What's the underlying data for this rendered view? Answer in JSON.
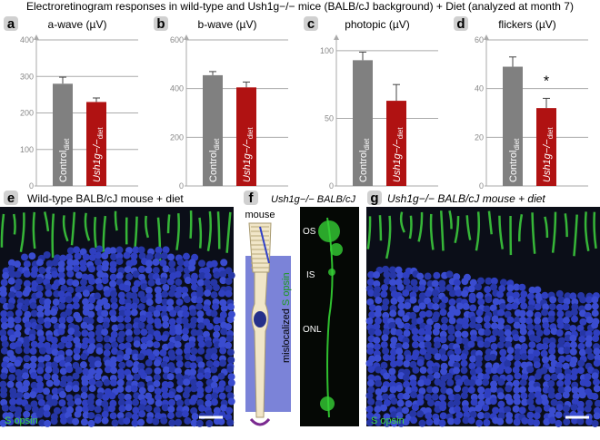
{
  "figure_title": "Electroretinogram responses in wild-type and Ush1g−/− mice (BALB/cJ background) + Diet (analyzed at month 7)",
  "chart_data": [
    {
      "type": "bar",
      "panel": "a",
      "title": "a-wave (µV)",
      "categories": [
        "Control",
        "Ush1g−/−"
      ],
      "category_subscript": "diet",
      "values": [
        280,
        230
      ],
      "errors": [
        18,
        11
      ],
      "colors": [
        "#808080",
        "#b01212"
      ],
      "ylim": [
        0,
        400
      ],
      "yticks": [
        0,
        100,
        200,
        300,
        400
      ],
      "grid": true
    },
    {
      "type": "bar",
      "panel": "b",
      "title": "b-wave (µV)",
      "categories": [
        "Control",
        "Ush1g−/−"
      ],
      "category_subscript": "diet",
      "values": [
        455,
        405
      ],
      "errors": [
        15,
        22
      ],
      "colors": [
        "#808080",
        "#b01212"
      ],
      "ylim": [
        0,
        600
      ],
      "yticks": [
        0,
        200,
        400,
        600
      ],
      "grid": true
    },
    {
      "type": "bar",
      "panel": "c",
      "title": "photopic (µV)",
      "categories": [
        "Control",
        "Ush1g−/−"
      ],
      "category_subscript": "diet",
      "values": [
        93,
        63
      ],
      "errors": [
        6,
        12
      ],
      "colors": [
        "#808080",
        "#b01212"
      ],
      "ylim": [
        0,
        108
      ],
      "yticks": [
        0,
        50,
        100
      ],
      "grid": true
    },
    {
      "type": "bar",
      "panel": "d",
      "title": "flickers (µV)",
      "categories": [
        "Control",
        "Ush1g−/−"
      ],
      "category_subscript": "diet",
      "values": [
        49,
        32
      ],
      "errors": [
        4,
        4
      ],
      "colors": [
        "#808080",
        "#b01212"
      ],
      "ylim": [
        0,
        60
      ],
      "yticks": [
        0,
        20,
        40,
        60
      ],
      "grid": true,
      "annotation": "*"
    }
  ],
  "panels": {
    "e": {
      "label": "e",
      "caption": "Wild-type BALB/cJ mouse + diet",
      "stain": "S opsin"
    },
    "f": {
      "label": "f",
      "caption": "Ush1g−/− BALB/cJ",
      "diagram_label": "mouse",
      "side_label": [
        "mislocalized",
        "S opsin"
      ],
      "layers": [
        "OS",
        "IS",
        "ONL"
      ]
    },
    "g": {
      "label": "g",
      "caption": "Ush1g−/− BALB/cJ mouse + diet",
      "stain": "S opsin"
    }
  }
}
